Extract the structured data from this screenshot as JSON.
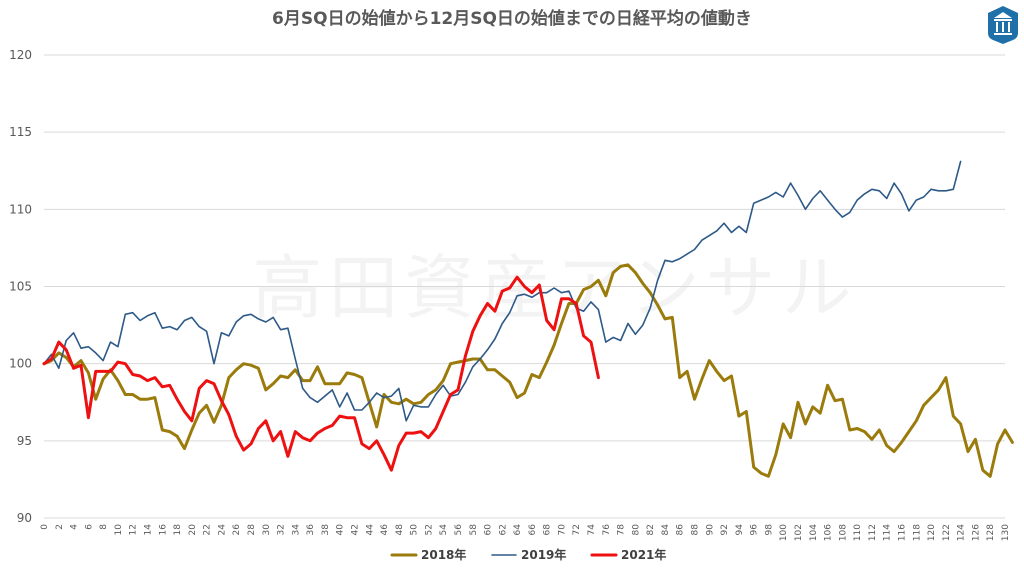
{
  "chart_data": {
    "type": "line",
    "title": "6月SQ日の始値から12月SQ日の始値までの日経平均の値動き",
    "watermark": "高田資産アンサル",
    "logo_icon": "building-logo-icon",
    "xlabel": "",
    "ylabel": "",
    "xlim": [
      0,
      130
    ],
    "ylim": [
      90,
      120
    ],
    "yticks": [
      90,
      95,
      100,
      105,
      110,
      115,
      120
    ],
    "xtick_step": 2,
    "grid": true,
    "legend_position": "bottom",
    "colors": {
      "s2018": "#9A7B0C",
      "s2019": "#2E5A88",
      "s2021": "#EE1111",
      "grid": "#D9D9D9"
    },
    "series": [
      {
        "name": "2018年",
        "color": "#9A7B0C",
        "values": [
          100.0,
          100.2,
          100.7,
          100.4,
          99.8,
          100.2,
          99.4,
          97.7,
          99.0,
          99.6,
          98.9,
          98.0,
          98.0,
          97.7,
          97.7,
          97.8,
          95.7,
          95.6,
          95.3,
          94.5,
          95.7,
          96.8,
          97.3,
          96.2,
          97.3,
          99.1,
          99.6,
          100.0,
          99.9,
          99.7,
          98.3,
          98.7,
          99.2,
          99.1,
          99.6,
          98.9,
          98.9,
          99.8,
          98.7,
          98.7,
          98.7,
          99.4,
          99.3,
          99.1,
          97.5,
          95.9,
          98.0,
          97.5,
          97.4,
          97.7,
          97.4,
          97.5,
          98.0,
          98.3,
          98.9,
          100.0,
          100.1,
          100.2,
          100.3,
          100.3,
          99.6,
          99.6,
          99.2,
          98.8,
          97.8,
          98.1,
          99.3,
          99.1,
          100.1,
          101.2,
          102.6,
          103.9,
          103.9,
          104.8,
          105.0,
          105.4,
          104.4,
          105.9,
          106.3,
          106.4,
          105.9,
          105.2,
          104.6,
          103.8,
          102.9,
          103.0,
          99.1,
          99.5,
          97.7,
          99.0,
          100.2,
          99.5,
          98.9,
          99.2,
          96.6,
          96.9,
          93.3,
          92.9,
          92.7,
          94.1,
          96.1,
          95.2,
          97.5,
          96.1,
          97.2,
          96.8,
          98.6,
          97.6,
          97.7,
          95.7,
          95.8,
          95.6,
          95.1,
          95.7,
          94.7,
          94.3,
          94.9,
          95.6,
          96.3,
          97.3,
          97.8,
          98.3,
          99.1,
          96.6,
          96.1,
          94.3,
          95.1,
          93.1,
          92.7,
          94.8,
          95.7,
          94.9
        ]
      },
      {
        "name": "2019年",
        "color": "#2E5A88",
        "values": [
          100.0,
          100.6,
          99.7,
          101.5,
          102.0,
          101.0,
          101.1,
          100.7,
          100.2,
          101.4,
          101.1,
          103.2,
          103.3,
          102.8,
          103.1,
          103.3,
          102.3,
          102.4,
          102.2,
          102.8,
          103.0,
          102.4,
          102.1,
          100.0,
          102.0,
          101.8,
          102.7,
          103.1,
          103.2,
          102.9,
          102.7,
          103.0,
          102.2,
          102.3,
          100.3,
          98.4,
          97.8,
          97.5,
          97.9,
          98.3,
          97.2,
          98.1,
          97.0,
          97.0,
          97.5,
          98.1,
          97.8,
          97.9,
          98.4,
          96.3,
          97.3,
          97.2,
          97.2,
          98.0,
          98.6,
          97.9,
          98.0,
          98.8,
          99.8,
          100.3,
          100.9,
          101.6,
          102.6,
          103.3,
          104.4,
          104.5,
          104.3,
          104.6,
          104.6,
          104.9,
          104.6,
          104.7,
          103.6,
          103.4,
          104.0,
          103.5,
          101.4,
          101.7,
          101.5,
          102.6,
          101.9,
          102.5,
          103.6,
          105.4,
          106.7,
          106.6,
          106.8,
          107.1,
          107.4,
          108.0,
          108.3,
          108.6,
          109.1,
          108.5,
          108.9,
          108.5,
          110.4,
          110.6,
          110.8,
          111.1,
          110.8,
          111.7,
          110.9,
          110.0,
          110.7,
          111.2,
          110.6,
          110.0,
          109.5,
          109.8,
          110.6,
          111.0,
          111.3,
          111.2,
          110.7,
          111.7,
          111.0,
          109.9,
          110.6,
          110.8,
          111.3,
          111.2,
          111.2,
          111.3,
          113.1
        ]
      },
      {
        "name": "2021年",
        "color": "#EE1111",
        "values": [
          100.0,
          100.3,
          101.4,
          100.9,
          99.7,
          99.9,
          96.5,
          99.5,
          99.5,
          99.5,
          100.1,
          100.0,
          99.3,
          99.2,
          98.9,
          99.1,
          98.5,
          98.6,
          97.7,
          96.9,
          96.3,
          98.4,
          98.9,
          98.7,
          97.6,
          96.7,
          95.3,
          94.4,
          94.8,
          95.8,
          96.3,
          95.0,
          95.6,
          94.0,
          95.6,
          95.2,
          95.0,
          95.5,
          95.8,
          96.0,
          96.6,
          96.5,
          96.5,
          94.8,
          94.5,
          95.0,
          94.1,
          93.1,
          94.7,
          95.5,
          95.5,
          95.6,
          95.2,
          95.8,
          96.9,
          98.0,
          98.3,
          100.5,
          102.1,
          103.1,
          103.9,
          103.4,
          104.7,
          104.9,
          105.6,
          105.0,
          104.6,
          105.1,
          102.8,
          102.2,
          104.2,
          104.2,
          103.9,
          101.8,
          101.4,
          99.1
        ]
      }
    ]
  }
}
